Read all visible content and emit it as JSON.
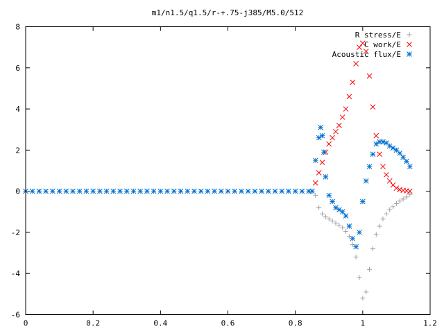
{
  "chart_data": {
    "type": "scatter",
    "title": "m1/n1.5/q1.5/r-+.75-j385/M5.0/512",
    "xlabel": "",
    "ylabel": "",
    "xlim": [
      0,
      1.2
    ],
    "ylim": [
      -6,
      8
    ],
    "x_ticks": [
      "0",
      "0.2",
      "0.4",
      "0.6",
      "0.8",
      "1",
      "1.2"
    ],
    "y_ticks": [
      "-6",
      "-4",
      "-2",
      "0",
      "2",
      "4",
      "6",
      "8"
    ],
    "grid": false,
    "legend": "top-right",
    "series": [
      {
        "name": "R stress/E",
        "marker": "plus",
        "color": "#a0a0a0",
        "points": [
          [
            0.86,
            -0.2
          ],
          [
            0.87,
            -0.8
          ],
          [
            0.88,
            -1.1
          ],
          [
            0.89,
            -1.25
          ],
          [
            0.9,
            -1.35
          ],
          [
            0.91,
            -1.45
          ],
          [
            0.92,
            -1.55
          ],
          [
            0.93,
            -1.65
          ],
          [
            0.94,
            -1.78
          ],
          [
            0.95,
            -1.95
          ],
          [
            0.96,
            -2.2
          ],
          [
            0.97,
            -2.6
          ],
          [
            0.98,
            -3.2
          ],
          [
            0.99,
            -4.2
          ],
          [
            1.0,
            -5.2
          ],
          [
            1.01,
            -4.9
          ],
          [
            1.02,
            -3.8
          ],
          [
            1.03,
            -2.8
          ],
          [
            1.04,
            -2.1
          ],
          [
            1.05,
            -1.7
          ],
          [
            1.06,
            -1.35
          ],
          [
            1.07,
            -1.1
          ],
          [
            1.08,
            -0.9
          ],
          [
            1.09,
            -0.75
          ],
          [
            1.1,
            -0.6
          ],
          [
            1.11,
            -0.48
          ],
          [
            1.12,
            -0.38
          ],
          [
            1.13,
            -0.28
          ],
          [
            1.14,
            -0.15
          ]
        ]
      },
      {
        "name": "C work/E",
        "marker": "cross",
        "color": "#ff0000",
        "points": [
          [
            0.86,
            0.4
          ],
          [
            0.87,
            0.9
          ],
          [
            0.88,
            1.4
          ],
          [
            0.89,
            1.9
          ],
          [
            0.9,
            2.3
          ],
          [
            0.91,
            2.6
          ],
          [
            0.92,
            2.9
          ],
          [
            0.93,
            3.2
          ],
          [
            0.94,
            3.6
          ],
          [
            0.95,
            4.0
          ],
          [
            0.96,
            4.6
          ],
          [
            0.97,
            5.3
          ],
          [
            0.98,
            6.2
          ],
          [
            0.99,
            7.0
          ],
          [
            1.0,
            7.2
          ],
          [
            1.01,
            6.8
          ],
          [
            1.02,
            5.6
          ],
          [
            1.03,
            4.1
          ],
          [
            1.04,
            2.7
          ],
          [
            1.05,
            1.8
          ],
          [
            1.06,
            1.2
          ],
          [
            1.07,
            0.8
          ],
          [
            1.08,
            0.5
          ],
          [
            1.09,
            0.3
          ],
          [
            1.1,
            0.15
          ],
          [
            1.11,
            0.08
          ],
          [
            1.12,
            0.04
          ],
          [
            1.13,
            0.02
          ],
          [
            1.14,
            0.0
          ]
        ]
      },
      {
        "name": "Acoustic flux/E",
        "marker": "star",
        "color": "#0070d0",
        "points": [
          [
            0.0,
            0.0
          ],
          [
            0.02,
            0.0
          ],
          [
            0.04,
            0.0
          ],
          [
            0.06,
            0.0
          ],
          [
            0.08,
            0.0
          ],
          [
            0.1,
            0.0
          ],
          [
            0.12,
            0.0
          ],
          [
            0.14,
            0.0
          ],
          [
            0.16,
            0.0
          ],
          [
            0.18,
            0.0
          ],
          [
            0.2,
            0.0
          ],
          [
            0.22,
            0.0
          ],
          [
            0.24,
            0.0
          ],
          [
            0.26,
            0.0
          ],
          [
            0.28,
            0.0
          ],
          [
            0.3,
            0.0
          ],
          [
            0.32,
            0.0
          ],
          [
            0.34,
            0.0
          ],
          [
            0.36,
            0.0
          ],
          [
            0.38,
            0.0
          ],
          [
            0.4,
            0.0
          ],
          [
            0.42,
            0.0
          ],
          [
            0.44,
            0.0
          ],
          [
            0.46,
            0.0
          ],
          [
            0.48,
            0.0
          ],
          [
            0.5,
            0.0
          ],
          [
            0.52,
            0.0
          ],
          [
            0.54,
            0.0
          ],
          [
            0.56,
            0.0
          ],
          [
            0.58,
            0.0
          ],
          [
            0.6,
            0.0
          ],
          [
            0.62,
            0.0
          ],
          [
            0.64,
            0.0
          ],
          [
            0.66,
            0.0
          ],
          [
            0.68,
            0.0
          ],
          [
            0.7,
            0.0
          ],
          [
            0.72,
            0.0
          ],
          [
            0.74,
            0.0
          ],
          [
            0.76,
            0.0
          ],
          [
            0.78,
            0.0
          ],
          [
            0.8,
            0.0
          ],
          [
            0.82,
            0.0
          ],
          [
            0.84,
            0.0
          ],
          [
            0.85,
            0.0
          ],
          [
            0.86,
            1.5
          ],
          [
            0.87,
            2.6
          ],
          [
            0.875,
            3.1
          ],
          [
            0.88,
            2.7
          ],
          [
            0.885,
            1.9
          ],
          [
            0.89,
            0.7
          ],
          [
            0.9,
            -0.2
          ],
          [
            0.91,
            -0.5
          ],
          [
            0.92,
            -0.8
          ],
          [
            0.93,
            -0.9
          ],
          [
            0.94,
            -1.0
          ],
          [
            0.95,
            -1.2
          ],
          [
            0.96,
            -1.7
          ],
          [
            0.97,
            -2.3
          ],
          [
            0.98,
            -2.7
          ],
          [
            0.99,
            -2.0
          ],
          [
            1.0,
            -0.5
          ],
          [
            1.01,
            0.5
          ],
          [
            1.02,
            1.2
          ],
          [
            1.03,
            1.8
          ],
          [
            1.04,
            2.3
          ],
          [
            1.05,
            2.4
          ],
          [
            1.06,
            2.4
          ],
          [
            1.07,
            2.35
          ],
          [
            1.08,
            2.2
          ],
          [
            1.09,
            2.1
          ],
          [
            1.1,
            2.0
          ],
          [
            1.11,
            1.85
          ],
          [
            1.12,
            1.65
          ],
          [
            1.13,
            1.45
          ],
          [
            1.14,
            1.2
          ]
        ]
      }
    ]
  }
}
